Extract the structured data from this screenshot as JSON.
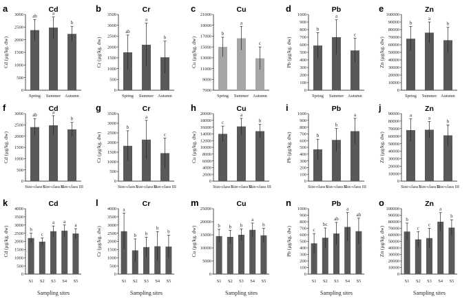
{
  "colors": {
    "bar": "#595959",
    "bar_light": "#a6a6a6",
    "axis": "#000000",
    "error": "#222222"
  },
  "chart_data": [
    {
      "label": "a",
      "type": "bar",
      "title": "Cd",
      "ylabel": "Cd (μg/kg. dw)",
      "xlabel": "",
      "ylim": [
        0,
        3000
      ],
      "yticks": [
        0,
        500,
        1000,
        1500,
        2000,
        2500,
        3000
      ],
      "categories": [
        "Spring",
        "Summer",
        "Autumn"
      ],
      "values": [
        2380,
        2480,
        2230
      ],
      "errors": [
        420,
        420,
        300
      ],
      "sig": [
        "ab",
        "a",
        "b"
      ]
    },
    {
      "label": "b",
      "type": "bar",
      "title": "Cr",
      "ylabel": "Cr (μg/kg. dw)",
      "xlabel": "",
      "ylim": [
        0,
        3500
      ],
      "yticks": [
        0,
        500,
        1000,
        1500,
        2000,
        2500,
        3000,
        3500
      ],
      "categories": [
        "Spring",
        "Summer",
        "Autumn"
      ],
      "values": [
        1750,
        2100,
        1520
      ],
      "errors": [
        800,
        1000,
        750
      ],
      "sig": [
        "ab",
        "a",
        "b"
      ]
    },
    {
      "label": "c",
      "type": "bar",
      "title": "Cu",
      "ylabel": "Cu (μg/kg. dw)",
      "xlabel": "",
      "ylim": [
        7000,
        21000
      ],
      "yticks": [
        7000,
        9000,
        11000,
        13000,
        15000,
        17000,
        19000,
        21000
      ],
      "categories": [
        "Spring",
        "Summer",
        "Autumn"
      ],
      "values": [
        15000,
        16600,
        12900
      ],
      "errors": [
        1800,
        2200,
        2100
      ],
      "sig": [
        "b",
        "a",
        "c"
      ],
      "light": true
    },
    {
      "label": "d",
      "type": "bar",
      "title": "Pb",
      "ylabel": "Pb (μg/kg. dw)",
      "xlabel": "",
      "ylim": [
        0,
        1000
      ],
      "yticks": [
        0,
        100,
        200,
        300,
        400,
        500,
        600,
        700,
        800,
        900,
        1000
      ],
      "categories": [
        "Spring",
        "Summer",
        "Autumn"
      ],
      "values": [
        590,
        700,
        525
      ],
      "errors": [
        170,
        230,
        160
      ],
      "sig": [
        "b",
        "a",
        "c"
      ]
    },
    {
      "label": "e",
      "type": "bar",
      "title": "Zn",
      "ylabel": "Zn (μg/kg. dw)",
      "xlabel": "",
      "ylim": [
        0,
        100000
      ],
      "yticks": [
        0,
        10000,
        20000,
        30000,
        40000,
        50000,
        60000,
        70000,
        80000,
        90000,
        100000
      ],
      "categories": [
        "Spring",
        "Summer",
        "Autumn"
      ],
      "values": [
        68000,
        76000,
        66000
      ],
      "errors": [
        16000,
        14000,
        17000
      ],
      "sig": [
        "b",
        "a",
        "b"
      ]
    },
    {
      "label": "f",
      "type": "bar",
      "title": "Cd",
      "ylabel": "Cd (μg/kg. dw)",
      "xlabel": "",
      "ylim": [
        0,
        3000
      ],
      "yticks": [
        0,
        500,
        1000,
        1500,
        2000,
        2500,
        3000
      ],
      "categories": [
        "Size-class I",
        "Size-class II",
        "Size-class III"
      ],
      "values": [
        2400,
        2480,
        2300
      ],
      "errors": [
        380,
        430,
        310
      ],
      "sig": [
        "ab",
        "a",
        "b"
      ]
    },
    {
      "label": "g",
      "type": "bar",
      "title": "Cr",
      "ylabel": "Cr (μg/kg. dw)",
      "xlabel": "",
      "ylim": [
        0,
        3500
      ],
      "yticks": [
        0,
        500,
        1000,
        1500,
        2000,
        2500,
        3000,
        3500
      ],
      "categories": [
        "Size-class I",
        "Size-class II",
        "Size-class III"
      ],
      "values": [
        1830,
        2150,
        1450
      ],
      "errors": [
        780,
        1000,
        780
      ],
      "sig": [
        "b",
        "a",
        "c"
      ]
    },
    {
      "label": "h",
      "type": "bar",
      "title": "Cu",
      "ylabel": "Cu (μg/kg. dw)",
      "xlabel": "",
      "ylim": [
        0,
        20000
      ],
      "yticks": [
        0,
        2000,
        4000,
        6000,
        8000,
        10000,
        12000,
        14000,
        16000,
        18000,
        20000
      ],
      "categories": [
        "Size-class I",
        "Size-class II",
        "Size-class III"
      ],
      "values": [
        14000,
        16200,
        14800
      ],
      "errors": [
        2300,
        2400,
        2000
      ],
      "sig": [
        "c",
        "a",
        "b"
      ]
    },
    {
      "label": "i",
      "type": "bar",
      "title": "Pb",
      "ylabel": "Pb (μg/kg. dw)",
      "xlabel": "",
      "ylim": [
        0,
        1000
      ],
      "yticks": [
        0,
        100,
        200,
        300,
        400,
        500,
        600,
        700,
        800,
        900,
        1000
      ],
      "categories": [
        "Size-class I",
        "Size-class II",
        "Size-class III"
      ],
      "values": [
        470,
        610,
        740
      ],
      "errors": [
        150,
        170,
        190
      ],
      "sig": [
        "b",
        "b",
        "a"
      ]
    },
    {
      "label": "j",
      "type": "bar",
      "title": "Zn",
      "ylabel": "Zn (μg/kg. dw)",
      "xlabel": "",
      "ylim": [
        0,
        90000
      ],
      "yticks": [
        0,
        10000,
        20000,
        30000,
        40000,
        50000,
        60000,
        70000,
        80000,
        90000
      ],
      "categories": [
        "Size-class I",
        "Size-class II",
        "Size-class III"
      ],
      "values": [
        68000,
        68500,
        61000
      ],
      "errors": [
        15000,
        11000,
        14000
      ],
      "sig": [
        "a",
        "a",
        "b"
      ]
    },
    {
      "label": "k",
      "type": "bar",
      "title": "Cd",
      "ylabel": "Cd (μg/kg. dw)",
      "xlabel": "Sampling sites",
      "ylim": [
        0,
        4000
      ],
      "yticks": [
        0,
        500,
        1000,
        1500,
        2000,
        2500,
        3000,
        3500,
        4000
      ],
      "categories": [
        "S1",
        "S2",
        "S3",
        "S4",
        "S5"
      ],
      "values": [
        2200,
        1980,
        2620,
        2650,
        2480
      ],
      "errors": [
        300,
        230,
        320,
        350,
        300
      ],
      "sig": [
        "b",
        "c",
        "a",
        "a",
        "a"
      ]
    },
    {
      "label": "l",
      "type": "bar",
      "title": "Cr",
      "ylabel": "Cr (μg/kg. dw)",
      "xlabel": "Sampling sites",
      "ylim": [
        0,
        4000
      ],
      "yticks": [
        0,
        500,
        1000,
        1500,
        2000,
        2500,
        3000,
        3500,
        4000
      ],
      "categories": [
        "S1",
        "S2",
        "S3",
        "S4",
        "S5"
      ],
      "values": [
        2620,
        1450,
        1650,
        1700,
        1680
      ],
      "errors": [
        1100,
        700,
        600,
        900,
        700
      ],
      "sig": [
        "a",
        "b",
        "b",
        "b",
        "b"
      ]
    },
    {
      "label": "m",
      "type": "bar",
      "title": "Cu",
      "ylabel": "Cu (μg/kg. dw)",
      "xlabel": "Sampling sites",
      "ylim": [
        0,
        25000
      ],
      "yticks": [
        0,
        5000,
        10000,
        15000,
        20000,
        25000
      ],
      "categories": [
        "S1",
        "S2",
        "S3",
        "S4",
        "S5"
      ],
      "values": [
        14500,
        14200,
        15000,
        16900,
        14800
      ],
      "errors": [
        2600,
        2500,
        2200,
        2600,
        2700
      ],
      "sig": [
        "b",
        "b",
        "b",
        "a",
        "b"
      ]
    },
    {
      "label": "n",
      "type": "bar",
      "title": "Pb",
      "ylabel": "Pb (μg/kg. dw)",
      "xlabel": "Sampling sites",
      "ylim": [
        0,
        1000
      ],
      "yticks": [
        0,
        100,
        200,
        300,
        400,
        500,
        600,
        700,
        800,
        900,
        1000
      ],
      "categories": [
        "S1",
        "S2",
        "S3",
        "S4",
        "S5"
      ],
      "values": [
        470,
        555,
        620,
        720,
        655
      ],
      "errors": [
        150,
        150,
        170,
        220,
        200
      ],
      "sig": [
        "c",
        "bc",
        "ab",
        "a",
        "ab"
      ]
    },
    {
      "label": "o",
      "type": "bar",
      "title": "Zn",
      "ylabel": "Zn (μg/kg. dw)",
      "xlabel": "Sampling sites",
      "ylim": [
        0,
        100000
      ],
      "yticks": [
        0,
        10000,
        20000,
        30000,
        40000,
        50000,
        60000,
        70000,
        80000,
        90000,
        100000
      ],
      "categories": [
        "S1",
        "S2",
        "S3",
        "S4",
        "S5"
      ],
      "values": [
        65000,
        53000,
        55000,
        80000,
        71000
      ],
      "errors": [
        13000,
        12000,
        15000,
        14000,
        12000
      ],
      "sig": [
        "b",
        "c",
        "c",
        "a",
        "b"
      ]
    }
  ]
}
